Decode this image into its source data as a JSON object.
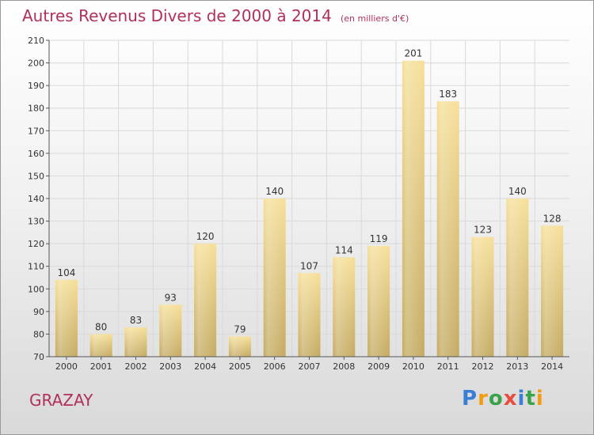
{
  "title": "Autres Revenus Divers de 2000 à 2014",
  "subtitle": "(en milliers d'€)",
  "city": "GRAZAY",
  "logo": {
    "text": "Proxiti",
    "letter_colors": [
      "#3a7fd5",
      "#f39c12",
      "#3aa34a",
      "#e74c3c",
      "#3a7fd5",
      "#3aa34a",
      "#f39c12"
    ]
  },
  "colors": {
    "bar_top": "#f6df98",
    "bar_bottom": "#c4aa62",
    "grid": "#d9d9d9",
    "axis": "#555555",
    "title": "#b0305a"
  },
  "chart_data": {
    "type": "bar",
    "categories": [
      "2000",
      "2001",
      "2002",
      "2003",
      "2004",
      "2005",
      "2006",
      "2007",
      "2008",
      "2009",
      "2010",
      "2011",
      "2012",
      "2013",
      "2014"
    ],
    "values": [
      104,
      80,
      83,
      93,
      120,
      79,
      140,
      107,
      114,
      119,
      201,
      183,
      123,
      140,
      128
    ],
    "ylim": [
      70,
      210
    ],
    "yticks": [
      70,
      80,
      90,
      100,
      110,
      120,
      130,
      140,
      150,
      160,
      170,
      180,
      190,
      200,
      210
    ],
    "grid": true,
    "data_labels": true,
    "xlabel": "",
    "ylabel": ""
  }
}
